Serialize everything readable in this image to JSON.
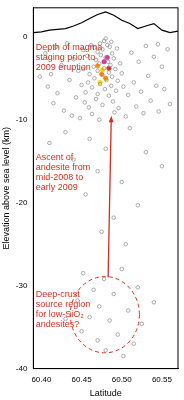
{
  "chart_data": {
    "type": "scatter",
    "x_label": "Latitude",
    "y_label": "Elevation above sea level (km)",
    "xlim": [
      60.39,
      60.57
    ],
    "xticks": [
      {
        "value": 60.4,
        "label": "60.40"
      },
      {
        "value": 60.45,
        "label": "60.45"
      },
      {
        "value": 60.5,
        "label": "60.50"
      },
      {
        "value": 60.55,
        "label": "60.55"
      }
    ],
    "ylim": [
      -40,
      3.5
    ],
    "yticks": [
      -40,
      -30,
      -20,
      -10,
      0
    ],
    "grid": false,
    "series": [
      {
        "type": "scatter",
        "color": "#8a8a8a",
        "marker": "circle_open",
        "x": [
          60.478,
          60.482,
          60.476,
          60.485,
          60.47,
          60.488,
          60.474,
          60.48,
          60.468,
          60.49,
          60.483,
          60.472,
          60.486,
          60.465,
          60.478,
          60.492,
          60.47,
          60.484,
          60.46,
          60.476,
          60.488,
          60.466,
          60.481,
          60.495,
          60.458,
          60.473,
          60.487,
          60.463,
          60.479,
          60.493,
          60.455,
          60.47,
          60.484,
          60.462,
          60.494,
          60.457,
          60.498,
          60.452,
          60.5,
          60.45,
          60.502,
          60.468,
          60.489,
          60.476,
          60.459,
          60.496,
          60.48,
          60.473,
          60.487,
          60.466,
          60.405,
          60.412,
          60.418,
          60.42,
          60.425,
          60.428,
          60.432,
          60.435,
          60.438,
          60.44,
          60.443,
          60.446,
          60.448,
          60.452,
          60.454,
          60.512,
          60.515,
          60.518,
          60.521,
          60.524,
          60.527,
          60.53,
          60.533,
          60.536,
          60.54,
          60.543,
          60.546,
          60.55,
          60.553,
          60.557,
          60.56,
          60.508,
          60.505,
          60.463,
          60.472,
          60.491,
          60.415,
          60.408,
          60.545,
          60.398,
          60.43,
          60.46,
          60.51,
          60.48,
          60.44,
          60.53,
          60.47,
          60.5,
          60.455,
          60.52,
          60.49,
          60.41,
          60.55,
          60.475,
          60.505,
          60.452,
          60.478,
          60.5,
          60.465,
          60.49,
          60.52,
          60.445,
          60.472,
          60.508,
          60.46,
          60.485,
          60.525,
          60.45,
          60.495,
          60.47,
          60.515,
          60.48,
          60.54,
          60.43,
          60.502
        ],
        "values": [
          -0.5,
          -1.0,
          -1.5,
          -1.2,
          -1.8,
          -2.0,
          -2.2,
          -2.5,
          -2.8,
          -2.6,
          -3.0,
          -3.2,
          -3.4,
          -3.6,
          -3.8,
          -3.9,
          -4.1,
          -4.3,
          -4.5,
          -4.6,
          -4.8,
          -5.0,
          -5.2,
          -5.3,
          -5.5,
          -5.7,
          -5.9,
          -6.1,
          -6.3,
          -6.5,
          -6.7,
          -6.9,
          -7.1,
          -1.0,
          -1.4,
          -2.3,
          -3.2,
          -3.9,
          -4.4,
          -5.8,
          -6.0,
          -7.5,
          -7.8,
          -8.2,
          -8.5,
          -8.6,
          -0.2,
          -0.8,
          -0.6,
          -1.3,
          -2.0,
          -4.5,
          -1.2,
          -6.8,
          -3.4,
          -8.9,
          -0.8,
          -5.2,
          -9.5,
          -2.7,
          -7.3,
          -4.1,
          -9.8,
          -1.6,
          -7.9,
          -1.9,
          -5.5,
          -8.4,
          -3.0,
          -6.6,
          -9.2,
          -1.1,
          -4.7,
          -7.7,
          -2.4,
          -5.9,
          -9.0,
          -3.6,
          -6.3,
          -1.5,
          -8.1,
          -7.0,
          -9.6,
          -9.3,
          -10.0,
          -9.1,
          -8.0,
          -6.0,
          -0.9,
          -4.8,
          -11.5,
          -12.3,
          -11.0,
          -13.5,
          -14.8,
          -13.9,
          -16.2,
          -17.5,
          -19.0,
          -20.3,
          -21.8,
          -12.8,
          -15.6,
          -23.5,
          -25.0,
          -28.5,
          -29.2,
          -28.0,
          -30.5,
          -31.0,
          -30.2,
          -31.8,
          -32.5,
          -33.0,
          -33.8,
          -34.2,
          -34.6,
          -35.5,
          -35.9,
          -36.6,
          -37.0,
          -37.8,
          -32.0,
          -34.0,
          -38.5
        ]
      },
      {
        "type": "scatter",
        "color": "#ff8c00",
        "marker": "circle",
        "x": [
          60.47,
          60.475,
          60.48
        ],
        "values": [
          -3.5,
          -4.5,
          -5.0
        ]
      },
      {
        "type": "scatter",
        "color": "#ffd700",
        "marker": "circle",
        "x": [
          60.476,
          60.473
        ],
        "values": [
          -4.0,
          -5.5
        ]
      },
      {
        "type": "scatter",
        "color": "#e0309a",
        "marker": "circle",
        "x": [
          60.478,
          60.482
        ],
        "values": [
          -3.0,
          -2.5
        ]
      },
      {
        "type": "scatter",
        "color": "#e03020",
        "marker": "circle",
        "x": [
          60.484
        ],
        "values": [
          -3.8
        ]
      },
      {
        "type": "line",
        "color": "#000000",
        "marker": "none",
        "line_style": "solid",
        "x": [
          60.39,
          60.4,
          60.41,
          60.42,
          60.43,
          60.44,
          60.45,
          60.46,
          60.47,
          60.48,
          60.49,
          60.5,
          60.51,
          60.52,
          60.53,
          60.54,
          60.55,
          60.56,
          60.57
        ],
        "values": [
          0.5,
          0.6,
          0.8,
          0.9,
          1.0,
          1.3,
          1.7,
          2.2,
          2.7,
          3.0,
          2.6,
          2.0,
          1.6,
          1.0,
          1.3,
          1.6,
          0.8,
          0.5,
          0.7
        ]
      }
    ],
    "annotations": [
      {
        "type": "text",
        "text": [
          "Depth of magma",
          "staging prior to",
          "2009 eruption"
        ],
        "x": 60.393,
        "y": -0.8,
        "color": "#d03020"
      },
      {
        "type": "text",
        "text": [
          "Ascent of",
          "andesite from",
          "mid-2008 to",
          "early 2009"
        ],
        "x": 60.393,
        "y": -14.0,
        "color": "#d03020"
      },
      {
        "type": "text",
        "text": [
          "Deep-crust",
          "source region",
          "for low-SiO₂",
          "andesites?"
        ],
        "x": 60.393,
        "y": -30.5,
        "color": "#d03020"
      },
      {
        "type": "arrow",
        "from": [
          60.483,
          -29.0
        ],
        "to": [
          60.487,
          -9.5
        ],
        "color": "#d03020"
      },
      {
        "type": "ellipse",
        "x": 60.479,
        "y": -33.5,
        "x_radius": 0.043,
        "y_radius": 4.6,
        "color": "#d03020",
        "line_style": "dashed"
      }
    ]
  }
}
